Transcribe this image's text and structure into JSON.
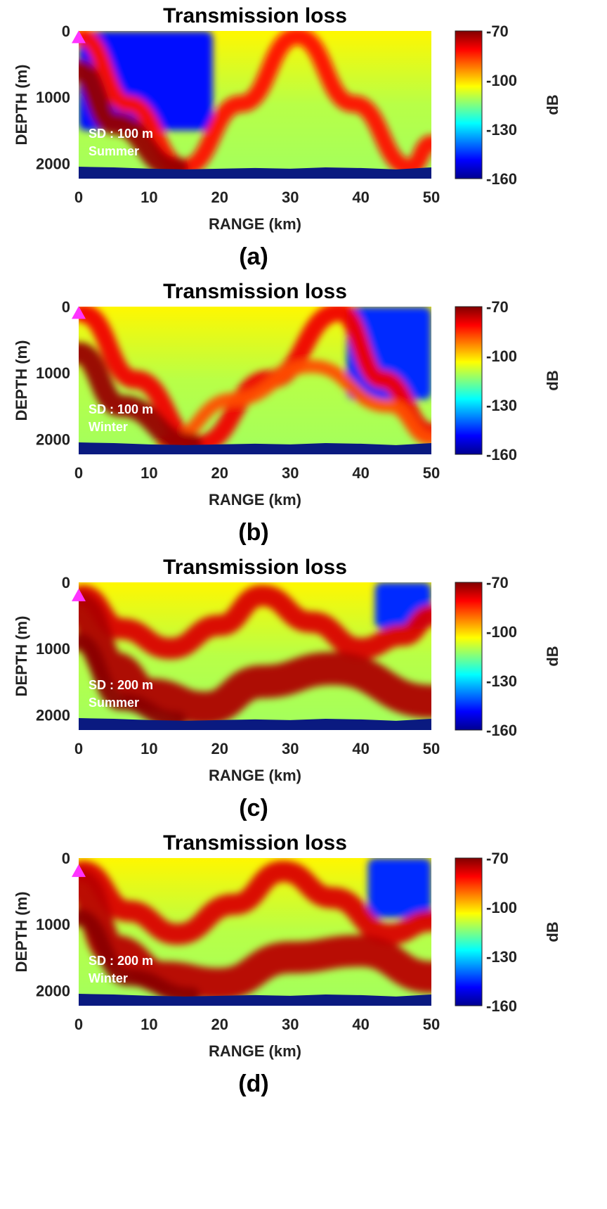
{
  "colors": {
    "colormap": [
      "#00008f",
      "#0000ff",
      "#0080ff",
      "#00ffff",
      "#80ff80",
      "#ffff00",
      "#ff8000",
      "#ff0000",
      "#800000"
    ],
    "seabed": "#0a1a80",
    "source_marker": "#ff33ff"
  },
  "chart_data": [
    {
      "type": "heatmap",
      "title": "Transmission loss",
      "panel_label": "(a)",
      "annotation": [
        "SD : 100 m",
        "Summer"
      ],
      "xlabel": "RANGE (km)",
      "ylabel": "DEPTH (m)",
      "colorbar_label": "dB",
      "xlim": [
        0,
        50
      ],
      "ylim": [
        2230,
        0
      ],
      "xticks": [
        0,
        10,
        20,
        30,
        40,
        50
      ],
      "yticks": [
        0,
        1000,
        2000
      ],
      "clim": [
        -160,
        -70
      ],
      "cticks": [
        -70,
        -100,
        -130,
        -160
      ],
      "source": {
        "range": 0,
        "depth": 100
      },
      "bathymetry": [
        [
          0,
          2050
        ],
        [
          5,
          2060
        ],
        [
          10,
          2080
        ],
        [
          15,
          2090
        ],
        [
          20,
          2080
        ],
        [
          25,
          2070
        ],
        [
          30,
          2080
        ],
        [
          35,
          2060
        ],
        [
          40,
          2070
        ],
        [
          45,
          2090
        ],
        [
          50,
          2060
        ]
      ],
      "features": [
        {
          "kind": "shadow",
          "range": 0,
          "depth": 0,
          "width": 19,
          "height": 1500,
          "value": -148
        },
        {
          "kind": "path",
          "points": [
            [
              0.5,
              100
            ],
            [
              7,
              1100
            ],
            [
              15,
              2060
            ],
            [
              23,
              1100
            ],
            [
              31,
              80
            ],
            [
              39,
              1100
            ],
            [
              47,
              2060
            ],
            [
              50,
              1700
            ]
          ],
          "value": -82,
          "width": 260
        },
        {
          "kind": "path",
          "points": [
            [
              0,
              600
            ],
            [
              5,
              1400
            ],
            [
              14,
              2080
            ]
          ],
          "value": -72,
          "width": 330
        }
      ]
    },
    {
      "type": "heatmap",
      "title": "Transmission loss",
      "panel_label": "(b)",
      "annotation": [
        "SD : 100 m",
        "Winter"
      ],
      "xlabel": "RANGE (km)",
      "ylabel": "DEPTH (m)",
      "colorbar_label": "dB",
      "xlim": [
        0,
        50
      ],
      "ylim": [
        2230,
        0
      ],
      "xticks": [
        0,
        10,
        20,
        30,
        40,
        50
      ],
      "yticks": [
        0,
        1000,
        2000
      ],
      "clim": [
        -160,
        -70
      ],
      "cticks": [
        -70,
        -100,
        -130,
        -160
      ],
      "source": {
        "range": 0,
        "depth": 100
      },
      "bathymetry": [
        [
          0,
          2050
        ],
        [
          5,
          2060
        ],
        [
          10,
          2080
        ],
        [
          15,
          2090
        ],
        [
          20,
          2080
        ],
        [
          25,
          2070
        ],
        [
          30,
          2080
        ],
        [
          35,
          2060
        ],
        [
          40,
          2070
        ],
        [
          45,
          2090
        ],
        [
          50,
          2060
        ]
      ],
      "features": [
        {
          "kind": "shadow",
          "range": 38,
          "depth": 0,
          "width": 12,
          "height": 1400,
          "value": -145
        },
        {
          "kind": "path",
          "points": [
            [
              0.5,
              100
            ],
            [
              8,
              1100
            ],
            [
              17,
              2080
            ],
            [
              27,
              1100
            ],
            [
              37,
              80
            ],
            [
              43,
              1100
            ],
            [
              50,
              1900
            ]
          ],
          "value": -80,
          "width": 280
        },
        {
          "kind": "path",
          "points": [
            [
              12,
              2060
            ],
            [
              22,
              1400
            ],
            [
              33,
              900
            ],
            [
              44,
              1500
            ],
            [
              50,
              2000
            ]
          ],
          "value": -88,
          "width": 200
        },
        {
          "kind": "path",
          "points": [
            [
              0,
              700
            ],
            [
              6,
              1500
            ],
            [
              16,
              2080
            ]
          ],
          "value": -72,
          "width": 330
        }
      ]
    },
    {
      "type": "heatmap",
      "title": "Transmission loss",
      "panel_label": "(c)",
      "annotation": [
        "SD : 200 m",
        "Summer"
      ],
      "xlabel": "RANGE (km)",
      "ylabel": "DEPTH (m)",
      "colorbar_label": "dB",
      "xlim": [
        0,
        50
      ],
      "ylim": [
        2230,
        0
      ],
      "xticks": [
        0,
        10,
        20,
        30,
        40,
        50
      ],
      "yticks": [
        0,
        1000,
        2000
      ],
      "clim": [
        -160,
        -70
      ],
      "cticks": [
        -70,
        -100,
        -130,
        -160
      ],
      "source": {
        "range": 0,
        "depth": 200
      },
      "bathymetry": [
        [
          0,
          2050
        ],
        [
          5,
          2060
        ],
        [
          10,
          2080
        ],
        [
          15,
          2090
        ],
        [
          20,
          2080
        ],
        [
          25,
          2070
        ],
        [
          30,
          2080
        ],
        [
          35,
          2060
        ],
        [
          40,
          2070
        ],
        [
          45,
          2090
        ],
        [
          50,
          2060
        ]
      ],
      "features": [
        {
          "kind": "shadow",
          "range": 42,
          "depth": 0,
          "width": 8,
          "height": 700,
          "value": -145
        },
        {
          "kind": "path",
          "points": [
            [
              0.5,
              200
            ],
            [
              6,
              700
            ],
            [
              13,
              1000
            ],
            [
              20,
              650
            ],
            [
              26,
              200
            ],
            [
              33,
              600
            ],
            [
              40,
              1000
            ],
            [
              46,
              800
            ],
            [
              50,
              500
            ]
          ],
          "value": -78,
          "width": 320
        },
        {
          "kind": "path",
          "points": [
            [
              0,
              400
            ],
            [
              5,
              1300
            ],
            [
              10,
              1700
            ],
            [
              18,
              1900
            ],
            [
              26,
              1500
            ],
            [
              36,
              1300
            ],
            [
              50,
              1800
            ]
          ],
          "value": -74,
          "width": 500
        },
        {
          "kind": "path",
          "points": [
            [
              0,
              900
            ],
            [
              6,
              1800
            ],
            [
              14,
              2080
            ]
          ],
          "value": -71,
          "width": 260
        }
      ]
    },
    {
      "type": "heatmap",
      "title": "Transmission loss",
      "panel_label": "(d)",
      "annotation": [
        "SD : 200 m",
        "Winter"
      ],
      "xlabel": "RANGE (km)",
      "ylabel": "DEPTH (m)",
      "colorbar_label": "dB",
      "xlim": [
        0,
        50
      ],
      "ylim": [
        2230,
        0
      ],
      "xticks": [
        0,
        10,
        20,
        30,
        40,
        50
      ],
      "yticks": [
        0,
        1000,
        2000
      ],
      "clim": [
        -160,
        -70
      ],
      "cticks": [
        -70,
        -100,
        -130,
        -160
      ],
      "source": {
        "range": 0,
        "depth": 200
      },
      "bathymetry": [
        [
          0,
          2050
        ],
        [
          5,
          2060
        ],
        [
          10,
          2080
        ],
        [
          15,
          2090
        ],
        [
          20,
          2080
        ],
        [
          25,
          2070
        ],
        [
          30,
          2080
        ],
        [
          35,
          2060
        ],
        [
          40,
          2070
        ],
        [
          45,
          2090
        ],
        [
          50,
          2060
        ]
      ],
      "features": [
        {
          "kind": "shadow",
          "range": 41,
          "depth": 0,
          "width": 9,
          "height": 900,
          "value": -145
        },
        {
          "kind": "path",
          "points": [
            [
              0.5,
              200
            ],
            [
              7,
              800
            ],
            [
              14,
              1150
            ],
            [
              22,
              700
            ],
            [
              29,
              200
            ],
            [
              36,
              600
            ],
            [
              44,
              1150
            ],
            [
              50,
              950
            ]
          ],
          "value": -78,
          "width": 320
        },
        {
          "kind": "path",
          "points": [
            [
              0,
              400
            ],
            [
              5,
              1400
            ],
            [
              12,
              1800
            ],
            [
              20,
              1900
            ],
            [
              30,
              1500
            ],
            [
              40,
              1400
            ],
            [
              50,
              1800
            ]
          ],
          "value": -75,
          "width": 480
        },
        {
          "kind": "path",
          "points": [
            [
              0,
              900
            ],
            [
              7,
              1800
            ],
            [
              16,
              2080
            ]
          ],
          "value": -71,
          "width": 260
        }
      ]
    }
  ]
}
